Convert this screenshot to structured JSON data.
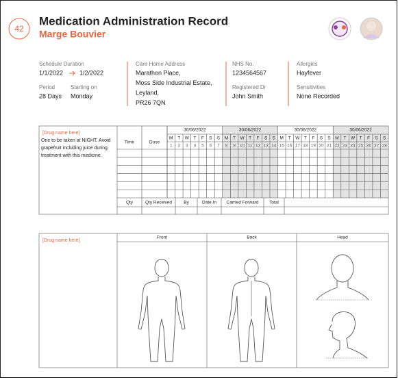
{
  "header": {
    "number": "42",
    "title": "Medication Administration Record",
    "resident_name": "Marge Bouvier"
  },
  "info": {
    "schedule_duration": {
      "label": "Schedule Duration",
      "from": "1/1/2022",
      "to": "1/2/2022"
    },
    "period": {
      "label": "Period",
      "value": "28 Days"
    },
    "starting_on": {
      "label": "Starting on",
      "value": "Monday"
    },
    "care_home_address": {
      "label": "Care Home Address",
      "lines": [
        "Marathon Place,",
        "Moss Side Industrial Estate,",
        "Leyland,",
        "PR26 7QN"
      ]
    },
    "nhs_no": {
      "label": "NHS No.",
      "value": "1234564567"
    },
    "registered_dr": {
      "label": "Registered Dr",
      "value": "John Smith"
    },
    "allergies": {
      "label": "Allergies",
      "value": "Hayfever"
    },
    "sensitivities": {
      "label": "Sensitivities",
      "value": "None Recorded"
    }
  },
  "mar_table": {
    "drug_name": "[Drug name here]",
    "instructions": "One to be taken at NIGHT. Avoid grapefruit including juice during treatment with this medicine.",
    "columns": [
      "Time",
      "Dose"
    ],
    "weeks": [
      {
        "date": "30/06/2022",
        "days": [
          "M",
          "T",
          "W",
          "T",
          "F",
          "S",
          "S"
        ],
        "dates": [
          1,
          2,
          3,
          4,
          5,
          6,
          7
        ]
      },
      {
        "date": "30/06/2022",
        "days": [
          "M",
          "T",
          "W",
          "T",
          "F",
          "S",
          "S"
        ],
        "dates": [
          8,
          9,
          10,
          11,
          12,
          13,
          14
        ]
      },
      {
        "date": "30/06/2022",
        "days": [
          "M",
          "T",
          "W",
          "T",
          "F",
          "S",
          "S"
        ],
        "dates": [
          15,
          16,
          17,
          18,
          19,
          20,
          21
        ]
      },
      {
        "date": "30/06/2022",
        "days": [
          "M",
          "T",
          "W",
          "T",
          "F",
          "S",
          "S"
        ],
        "dates": [
          22,
          23,
          24,
          25,
          26,
          27,
          28
        ]
      }
    ],
    "footer": [
      "Qty",
      "Qty Received",
      "By",
      "Date In",
      "Carried Forward",
      "Total"
    ]
  },
  "body_chart": {
    "drug_name": "[Drug name here]",
    "views": [
      "Front",
      "Back",
      "Head"
    ]
  }
}
